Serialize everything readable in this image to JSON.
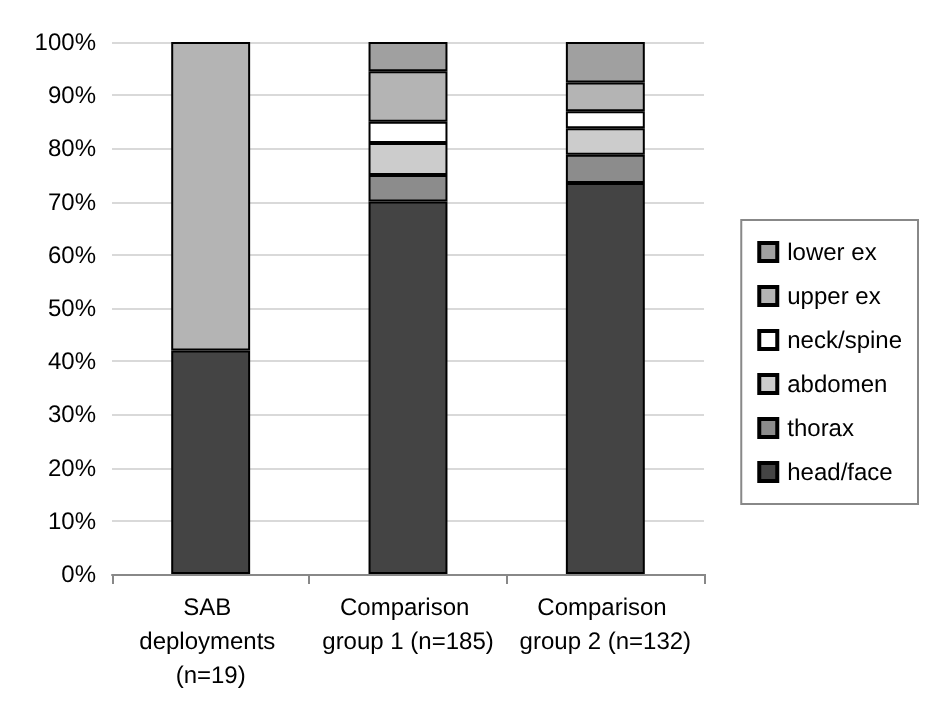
{
  "chart_data": {
    "type": "bar",
    "stacked": true,
    "categories": [
      "SAB deployments (n=19)",
      "Comparison group 1 (n=185)",
      "Comparison group 2 (n=132)"
    ],
    "series": [
      {
        "name": "head/face",
        "color": "#444444",
        "values": [
          42,
          70,
          73.5
        ]
      },
      {
        "name": "thorax",
        "color": "#8c8c8c",
        "values": [
          0,
          5,
          5.3
        ]
      },
      {
        "name": "abdomen",
        "color": "#cccccc",
        "values": [
          0,
          6,
          5
        ]
      },
      {
        "name": "neck/spine",
        "color": "#ffffff",
        "values": [
          0,
          4,
          3.2
        ]
      },
      {
        "name": "upper ex",
        "color": "#b4b4b4",
        "values": [
          58,
          9.5,
          5.4
        ]
      },
      {
        "name": "lower ex",
        "color": "#a0a0a0",
        "values": [
          0,
          5.5,
          7.6
        ]
      }
    ],
    "ylim": [
      0,
      100
    ],
    "yticks": [
      {
        "value": 0,
        "label": "0%"
      },
      {
        "value": 10,
        "label": "10%"
      },
      {
        "value": 20,
        "label": "20%"
      },
      {
        "value": 30,
        "label": "30%"
      },
      {
        "value": 40,
        "label": "40%"
      },
      {
        "value": 50,
        "label": "50%"
      },
      {
        "value": 60,
        "label": "60%"
      },
      {
        "value": 70,
        "label": "70%"
      },
      {
        "value": 80,
        "label": "80%"
      },
      {
        "value": 90,
        "label": "90%"
      },
      {
        "value": 100,
        "label": "100%"
      }
    ],
    "grid": "y",
    "legend": "right"
  }
}
